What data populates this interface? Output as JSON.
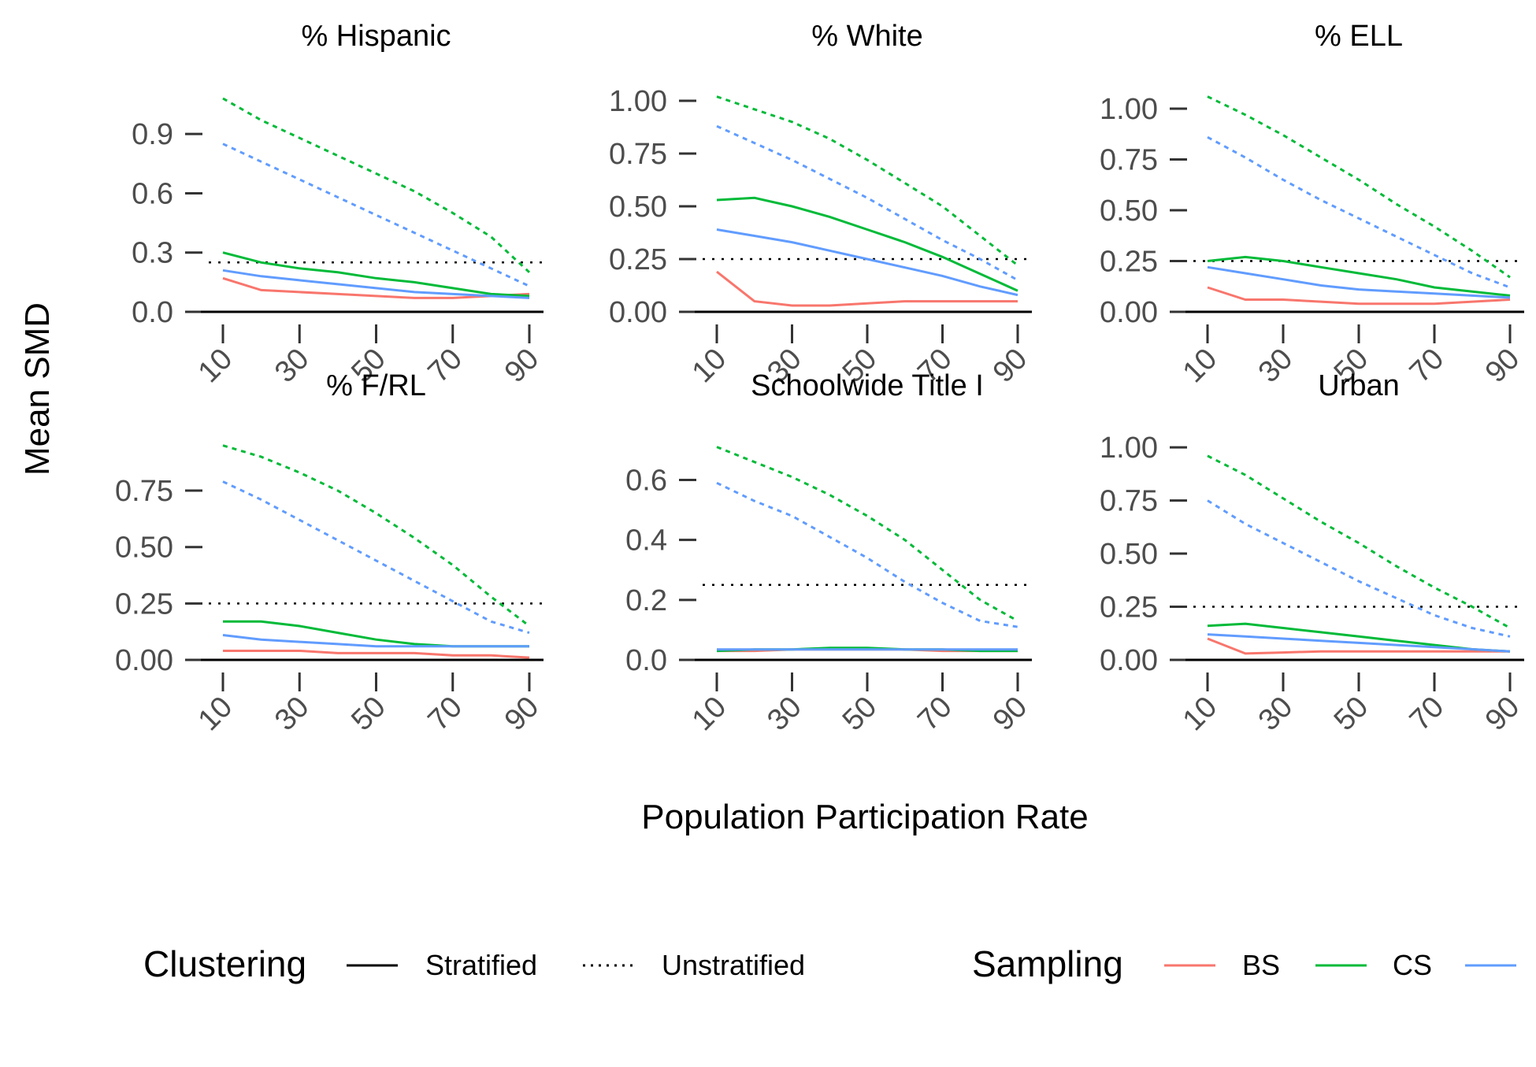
{
  "chart_data": {
    "type": "line",
    "ylabel": "Mean SMD",
    "xlabel": "Population Participation Rate",
    "x_ticks": [
      10,
      30,
      50,
      70,
      90
    ],
    "reference_line": 0.25,
    "legend": {
      "placement": "bottom",
      "clustering_title": "Clustering",
      "clustering_items": [
        {
          "label": "Stratified",
          "linetype": "solid"
        },
        {
          "label": "Unstratified",
          "linetype": "dotted"
        }
      ],
      "sampling_title": "Sampling",
      "sampling_items": [
        {
          "label": "BS",
          "color": "#f8766d"
        },
        {
          "label": "CS",
          "color": "#00ba38"
        },
        {
          "label": "",
          "color": "#619cff"
        }
      ]
    },
    "colors": {
      "BS": "#f8766d",
      "CS": "#00ba38",
      "third": "#619cff"
    },
    "panels": [
      {
        "title": "% Hispanic",
        "ylim": [
          0,
          1.1
        ],
        "yticks": [
          "0.0",
          "0.3",
          "0.6",
          "0.9"
        ],
        "ytick_values": [
          0,
          0.3,
          0.6,
          0.9
        ],
        "x": [
          10,
          20,
          30,
          40,
          50,
          60,
          70,
          80,
          90
        ],
        "series": [
          {
            "sampling": "BS",
            "clustering": "Stratified",
            "values": [
              0.17,
              0.11,
              0.1,
              0.09,
              0.08,
              0.07,
              0.07,
              0.08,
              0.09
            ]
          },
          {
            "sampling": "CS",
            "clustering": "Stratified",
            "values": [
              0.3,
              0.25,
              0.22,
              0.2,
              0.17,
              0.15,
              0.12,
              0.09,
              0.08
            ]
          },
          {
            "sampling": "third",
            "clustering": "Stratified",
            "values": [
              0.21,
              0.18,
              0.16,
              0.14,
              0.12,
              0.1,
              0.09,
              0.08,
              0.07
            ]
          },
          {
            "sampling": "CS",
            "clustering": "Unstratified",
            "values": [
              1.08,
              0.97,
              0.88,
              0.79,
              0.7,
              0.61,
              0.5,
              0.38,
              0.2
            ]
          },
          {
            "sampling": "third",
            "clustering": "Unstratified",
            "values": [
              0.85,
              0.76,
              0.67,
              0.58,
              0.49,
              0.4,
              0.31,
              0.22,
              0.13
            ]
          }
        ]
      },
      {
        "title": "% White",
        "ylim": [
          0,
          1.03
        ],
        "yticks": [
          "0.00",
          "0.25",
          "0.50",
          "0.75",
          "1.00"
        ],
        "ytick_values": [
          0,
          0.25,
          0.5,
          0.75,
          1.0
        ],
        "x": [
          10,
          20,
          30,
          40,
          50,
          60,
          70,
          80,
          90
        ],
        "series": [
          {
            "sampling": "BS",
            "clustering": "Stratified",
            "values": [
              0.19,
              0.05,
              0.03,
              0.03,
              0.04,
              0.05,
              0.05,
              0.05,
              0.05
            ]
          },
          {
            "sampling": "CS",
            "clustering": "Stratified",
            "values": [
              0.53,
              0.54,
              0.5,
              0.45,
              0.39,
              0.33,
              0.26,
              0.18,
              0.1
            ]
          },
          {
            "sampling": "third",
            "clustering": "Stratified",
            "values": [
              0.39,
              0.36,
              0.33,
              0.29,
              0.25,
              0.21,
              0.17,
              0.12,
              0.08
            ]
          },
          {
            "sampling": "CS",
            "clustering": "Unstratified",
            "values": [
              1.02,
              0.96,
              0.9,
              0.82,
              0.72,
              0.61,
              0.5,
              0.36,
              0.22
            ]
          },
          {
            "sampling": "third",
            "clustering": "Unstratified",
            "values": [
              0.88,
              0.8,
              0.72,
              0.63,
              0.54,
              0.44,
              0.34,
              0.25,
              0.15
            ]
          }
        ]
      },
      {
        "title": "% ELL",
        "ylim": [
          0,
          1.07
        ],
        "yticks": [
          "0.00",
          "0.25",
          "0.50",
          "0.75",
          "1.00"
        ],
        "ytick_values": [
          0,
          0.25,
          0.5,
          0.75,
          1.0
        ],
        "x": [
          10,
          20,
          30,
          40,
          50,
          60,
          70,
          80,
          90
        ],
        "series": [
          {
            "sampling": "BS",
            "clustering": "Stratified",
            "values": [
              0.12,
              0.06,
              0.06,
              0.05,
              0.04,
              0.04,
              0.04,
              0.05,
              0.06
            ]
          },
          {
            "sampling": "CS",
            "clustering": "Stratified",
            "values": [
              0.25,
              0.27,
              0.25,
              0.22,
              0.19,
              0.16,
              0.12,
              0.1,
              0.08
            ]
          },
          {
            "sampling": "third",
            "clustering": "Stratified",
            "values": [
              0.22,
              0.19,
              0.16,
              0.13,
              0.11,
              0.1,
              0.09,
              0.08,
              0.07
            ]
          },
          {
            "sampling": "CS",
            "clustering": "Unstratified",
            "values": [
              1.06,
              0.97,
              0.87,
              0.76,
              0.65,
              0.53,
              0.42,
              0.3,
              0.17
            ]
          },
          {
            "sampling": "third",
            "clustering": "Unstratified",
            "values": [
              0.86,
              0.76,
              0.65,
              0.55,
              0.46,
              0.37,
              0.28,
              0.19,
              0.12
            ]
          }
        ]
      },
      {
        "title": "% F/RL",
        "ylim": [
          0,
          0.97
        ],
        "yticks": [
          "0.00",
          "0.25",
          "0.50",
          "0.75"
        ],
        "ytick_values": [
          0,
          0.25,
          0.5,
          0.75
        ],
        "x": [
          10,
          20,
          30,
          40,
          50,
          60,
          70,
          80,
          90
        ],
        "series": [
          {
            "sampling": "BS",
            "clustering": "Stratified",
            "values": [
              0.04,
              0.04,
              0.04,
              0.03,
              0.03,
              0.03,
              0.02,
              0.02,
              0.01
            ]
          },
          {
            "sampling": "CS",
            "clustering": "Stratified",
            "values": [
              0.17,
              0.17,
              0.15,
              0.12,
              0.09,
              0.07,
              0.06,
              0.06,
              0.06
            ]
          },
          {
            "sampling": "third",
            "clustering": "Stratified",
            "values": [
              0.11,
              0.09,
              0.08,
              0.07,
              0.06,
              0.06,
              0.06,
              0.06,
              0.06
            ]
          },
          {
            "sampling": "CS",
            "clustering": "Unstratified",
            "values": [
              0.95,
              0.9,
              0.83,
              0.75,
              0.65,
              0.54,
              0.42,
              0.28,
              0.15
            ]
          },
          {
            "sampling": "third",
            "clustering": "Unstratified",
            "values": [
              0.79,
              0.71,
              0.62,
              0.53,
              0.44,
              0.35,
              0.26,
              0.17,
              0.12
            ]
          }
        ]
      },
      {
        "title": "Schoolwide Title I",
        "ylim": [
          0,
          0.73
        ],
        "yticks": [
          "0.0",
          "0.2",
          "0.4",
          "0.6"
        ],
        "ytick_values": [
          0,
          0.2,
          0.4,
          0.6
        ],
        "x": [
          10,
          20,
          30,
          40,
          50,
          60,
          70,
          80,
          90
        ],
        "series": [
          {
            "sampling": "BS",
            "clustering": "Stratified",
            "values": [
              0.03,
              0.03,
              0.035,
              0.035,
              0.035,
              0.035,
              0.03,
              0.03,
              0.03
            ]
          },
          {
            "sampling": "CS",
            "clustering": "Stratified",
            "values": [
              0.03,
              0.035,
              0.035,
              0.04,
              0.04,
              0.035,
              0.035,
              0.03,
              0.03
            ]
          },
          {
            "sampling": "third",
            "clustering": "Stratified",
            "values": [
              0.035,
              0.035,
              0.035,
              0.035,
              0.035,
              0.035,
              0.035,
              0.035,
              0.035
            ]
          },
          {
            "sampling": "CS",
            "clustering": "Unstratified",
            "values": [
              0.71,
              0.66,
              0.61,
              0.55,
              0.48,
              0.4,
              0.3,
              0.2,
              0.13
            ]
          },
          {
            "sampling": "third",
            "clustering": "Unstratified",
            "values": [
              0.59,
              0.53,
              0.48,
              0.41,
              0.34,
              0.26,
              0.19,
              0.13,
              0.11
            ]
          }
        ]
      },
      {
        "title": "Urban",
        "ylim": [
          0,
          1.03
        ],
        "yticks": [
          "0.00",
          "0.25",
          "0.50",
          "0.75",
          "1.00"
        ],
        "ytick_values": [
          0,
          0.25,
          0.5,
          0.75,
          1.0
        ],
        "x": [
          10,
          20,
          30,
          40,
          50,
          60,
          70,
          80,
          90
        ],
        "series": [
          {
            "sampling": "BS",
            "clustering": "Stratified",
            "values": [
              0.1,
              0.03,
              0.035,
              0.04,
              0.04,
              0.04,
              0.04,
              0.04,
              0.04
            ]
          },
          {
            "sampling": "CS",
            "clustering": "Stratified",
            "values": [
              0.16,
              0.17,
              0.15,
              0.13,
              0.11,
              0.09,
              0.07,
              0.05,
              0.04
            ]
          },
          {
            "sampling": "third",
            "clustering": "Stratified",
            "values": [
              0.12,
              0.11,
              0.1,
              0.09,
              0.08,
              0.07,
              0.06,
              0.05,
              0.04
            ]
          },
          {
            "sampling": "CS",
            "clustering": "Unstratified",
            "values": [
              0.96,
              0.87,
              0.76,
              0.65,
              0.55,
              0.44,
              0.34,
              0.25,
              0.15
            ]
          },
          {
            "sampling": "third",
            "clustering": "Unstratified",
            "values": [
              0.75,
              0.64,
              0.55,
              0.46,
              0.37,
              0.29,
              0.21,
              0.15,
              0.11
            ]
          }
        ]
      }
    ]
  }
}
